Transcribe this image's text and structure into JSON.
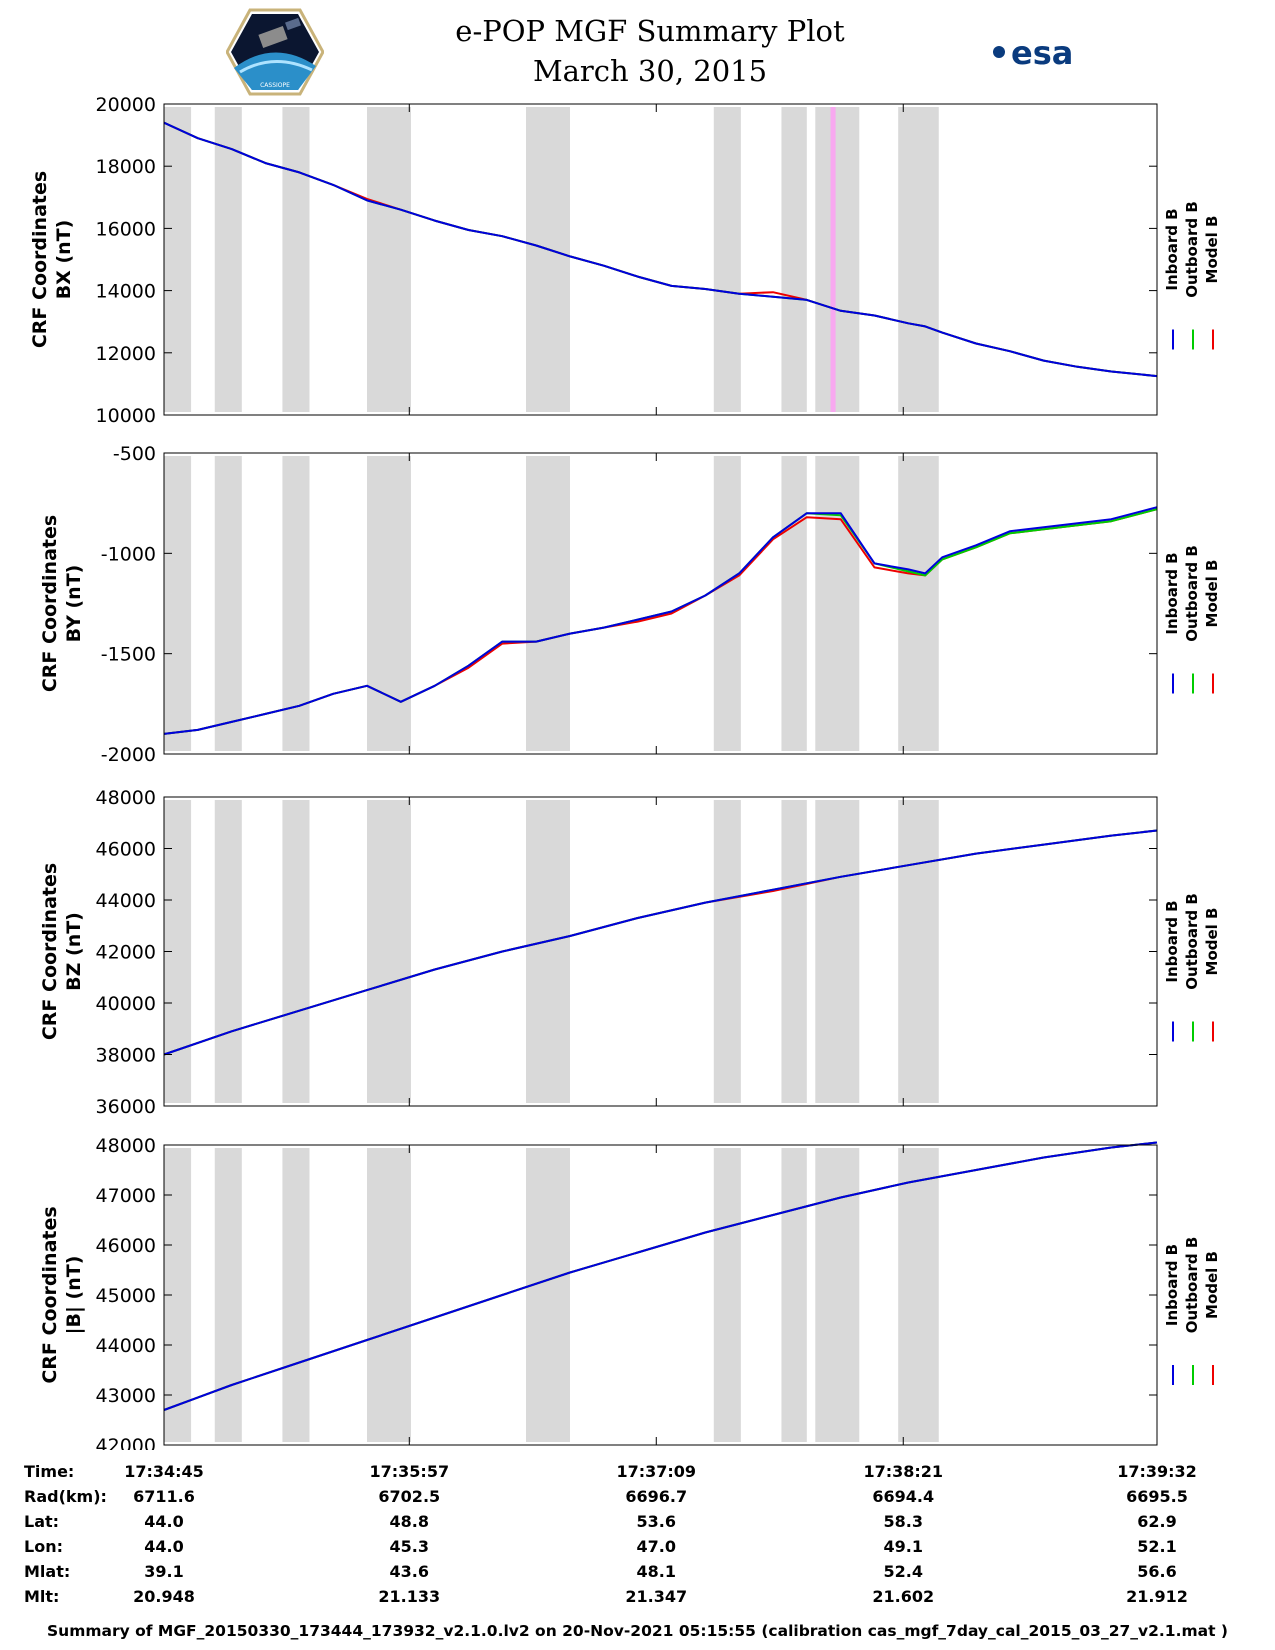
{
  "header": {
    "title_line1": "e-POP MGF Summary Plot",
    "title_line2": "March 30, 2015",
    "logo_left_text": "CASSIOPE",
    "logo_right_text": "esa"
  },
  "colors": {
    "inboard": "#0000dd",
    "outboard": "#00cc00",
    "model": "#ee0000",
    "gap_shading": "#d9d9d9",
    "event_highlight": "#f8a8f0"
  },
  "chart_data": [
    {
      "type": "line",
      "ylabel_line1": "CRF Coordinates",
      "ylabel_line2": "BX (nT)",
      "ylim": [
        10000,
        20000
      ],
      "yticks": [
        "20000",
        "18000",
        "16000",
        "14000",
        "12000",
        "10000"
      ],
      "ytick_values": [
        20000,
        18000,
        16000,
        14000,
        12000,
        10000
      ],
      "legend": [
        "Inboard B",
        "Outboard B",
        "Model B"
      ],
      "x": [
        0,
        20,
        40,
        60,
        80,
        100,
        120,
        140,
        160,
        180,
        200,
        220,
        240,
        260,
        280,
        300,
        320,
        340,
        360,
        380,
        400,
        420,
        440,
        450,
        460,
        480,
        500,
        520,
        540,
        560,
        587
      ],
      "series": [
        {
          "name": "Inboard B",
          "values": [
            19400,
            18900,
            18550,
            18100,
            17800,
            17400,
            16900,
            16600,
            16250,
            15950,
            15750,
            15450,
            15100,
            14800,
            14450,
            14150,
            14050,
            13900,
            13800,
            13700,
            13350,
            13200,
            12950,
            12850,
            12650,
            12300,
            12050,
            11750,
            11550,
            11400,
            11250
          ]
        },
        {
          "name": "Outboard B",
          "values": [
            19400,
            18900,
            18550,
            18100,
            17800,
            17400,
            16900,
            16600,
            16250,
            15950,
            15750,
            15450,
            15100,
            14800,
            14450,
            14150,
            14050,
            13900,
            13800,
            13700,
            13350,
            13200,
            12950,
            12850,
            12650,
            12300,
            12050,
            11750,
            11550,
            11400,
            11250
          ]
        },
        {
          "name": "Model B",
          "values": [
            19400,
            18900,
            18550,
            18100,
            17800,
            17400,
            16950,
            16600,
            16250,
            15950,
            15750,
            15450,
            15100,
            14800,
            14450,
            14150,
            14050,
            13900,
            13950,
            13700,
            13350,
            13200,
            12950,
            12850,
            12650,
            12300,
            12050,
            11750,
            11550,
            11400,
            11250
          ]
        }
      ]
    },
    {
      "type": "line",
      "ylabel_line1": "CRF Coordinates",
      "ylabel_line2": "BY (nT)",
      "ylim": [
        -2000,
        -500
      ],
      "yticks": [
        "-500",
        "-1000",
        "-1500",
        "-2000"
      ],
      "ytick_values": [
        -500,
        -1000,
        -1500,
        -2000
      ],
      "legend": [
        "Inboard B",
        "Outboard B",
        "Model B"
      ],
      "x": [
        0,
        20,
        40,
        60,
        80,
        100,
        120,
        140,
        160,
        180,
        200,
        220,
        240,
        260,
        280,
        300,
        320,
        340,
        360,
        380,
        400,
        420,
        440,
        450,
        460,
        480,
        500,
        520,
        540,
        560,
        587
      ],
      "series": [
        {
          "name": "Inboard B",
          "values": [
            -1900,
            -1880,
            -1840,
            -1800,
            -1760,
            -1700,
            -1660,
            -1740,
            -1660,
            -1560,
            -1440,
            -1440,
            -1400,
            -1370,
            -1330,
            -1290,
            -1210,
            -1100,
            -920,
            -800,
            -800,
            -1050,
            -1080,
            -1100,
            -1020,
            -960,
            -890,
            -870,
            -850,
            -830,
            -770
          ]
        },
        {
          "name": "Outboard B",
          "values": [
            -1900,
            -1880,
            -1840,
            -1800,
            -1760,
            -1700,
            -1660,
            -1740,
            -1660,
            -1560,
            -1440,
            -1440,
            -1400,
            -1370,
            -1330,
            -1290,
            -1210,
            -1100,
            -920,
            -800,
            -810,
            -1050,
            -1090,
            -1110,
            -1030,
            -970,
            -900,
            -880,
            -860,
            -840,
            -780
          ]
        },
        {
          "name": "Model B",
          "values": [
            -1900,
            -1880,
            -1840,
            -1800,
            -1760,
            -1700,
            -1660,
            -1740,
            -1660,
            -1570,
            -1450,
            -1440,
            -1400,
            -1370,
            -1340,
            -1300,
            -1210,
            -1110,
            -930,
            -820,
            -830,
            -1070,
            -1100,
            -1110,
            -1030,
            -970,
            -900,
            -880,
            -860,
            -840,
            -780
          ]
        }
      ]
    },
    {
      "type": "line",
      "ylabel_line1": "CRF Coordinates",
      "ylabel_line2": "BZ (nT)",
      "ylim": [
        36000,
        48000
      ],
      "yticks": [
        "48000",
        "46000",
        "44000",
        "42000",
        "40000",
        "38000",
        "36000"
      ],
      "ytick_values": [
        48000,
        46000,
        44000,
        42000,
        40000,
        38000,
        36000
      ],
      "legend": [
        "Inboard B",
        "Outboard B",
        "Model B"
      ],
      "x": [
        0,
        40,
        80,
        120,
        160,
        200,
        240,
        280,
        320,
        360,
        400,
        440,
        480,
        520,
        560,
        587
      ],
      "series": [
        {
          "name": "Inboard B",
          "values": [
            38000,
            38900,
            39700,
            40500,
            41300,
            42000,
            42600,
            43300,
            43900,
            44400,
            44900,
            45350,
            45800,
            46150,
            46500,
            46700
          ]
        },
        {
          "name": "Outboard B",
          "values": [
            38000,
            38900,
            39700,
            40500,
            41300,
            42000,
            42600,
            43300,
            43900,
            44400,
            44900,
            45350,
            45800,
            46150,
            46500,
            46700
          ]
        },
        {
          "name": "Model B",
          "values": [
            38000,
            38900,
            39700,
            40500,
            41300,
            42000,
            42600,
            43300,
            43900,
            44350,
            44900,
            45350,
            45800,
            46150,
            46500,
            46700
          ]
        }
      ]
    },
    {
      "type": "line",
      "ylabel_line1": "CRF Coordinates",
      "ylabel_line2": "|B| (nT)",
      "ylim": [
        42000,
        48000
      ],
      "yticks": [
        "48000",
        "47000",
        "46000",
        "45000",
        "44000",
        "43000",
        "42000"
      ],
      "ytick_values": [
        48000,
        47000,
        46000,
        45000,
        44000,
        43000,
        42000
      ],
      "legend": [
        "Inboard B",
        "Outboard B",
        "Model B"
      ],
      "x": [
        0,
        40,
        80,
        120,
        160,
        200,
        240,
        280,
        320,
        360,
        400,
        440,
        480,
        520,
        560,
        587
      ],
      "series": [
        {
          "name": "Inboard B",
          "values": [
            42700,
            43200,
            43650,
            44100,
            44550,
            45000,
            45450,
            45850,
            46250,
            46600,
            46950,
            47250,
            47500,
            47750,
            47950,
            48050
          ]
        },
        {
          "name": "Outboard B",
          "values": [
            42700,
            43200,
            43650,
            44100,
            44550,
            45000,
            45450,
            45850,
            46250,
            46600,
            46950,
            47250,
            47500,
            47750,
            47950,
            48050
          ]
        },
        {
          "name": "Model B",
          "values": [
            42700,
            43200,
            43650,
            44100,
            44550,
            45000,
            45450,
            45850,
            46250,
            46600,
            46950,
            47250,
            47500,
            47750,
            47950,
            48050
          ]
        }
      ]
    }
  ],
  "time_axis": {
    "start_seconds": 0,
    "end_seconds": 587,
    "gap_intervals_seconds": [
      [
        0,
        16
      ],
      [
        30,
        46
      ],
      [
        70,
        86
      ],
      [
        120,
        146
      ],
      [
        214,
        240
      ],
      [
        325,
        341
      ],
      [
        365,
        380
      ],
      [
        385,
        411
      ],
      [
        434,
        458
      ]
    ],
    "event_interval_seconds": [
      394,
      397
    ]
  },
  "ephemeris": {
    "row_labels": [
      "Time:",
      "Rad(km):",
      "Lat:",
      "Lon:",
      "Mlat:",
      "Mlt:"
    ],
    "tick_seconds": [
      0,
      145,
      291,
      437,
      587
    ],
    "columns": [
      [
        "17:34:45",
        "6711.6",
        "44.0",
        "44.0",
        "39.1",
        "20.948"
      ],
      [
        "17:35:57",
        "6702.5",
        "48.8",
        "45.3",
        "43.6",
        "21.133"
      ],
      [
        "17:37:09",
        "6696.7",
        "53.6",
        "47.0",
        "48.1",
        "21.347"
      ],
      [
        "17:38:21",
        "6694.4",
        "58.3",
        "49.1",
        "52.4",
        "21.602"
      ],
      [
        "17:39:32",
        "6695.5",
        "62.9",
        "52.1",
        "56.6",
        "21.912"
      ]
    ]
  },
  "footer": "Summary of MGF_20150330_173444_173932_v2.1.0.lv2 on 20-Nov-2021 05:15:55 (calibration cas_mgf_7day_cal_2015_03_27_v2.1.mat )"
}
